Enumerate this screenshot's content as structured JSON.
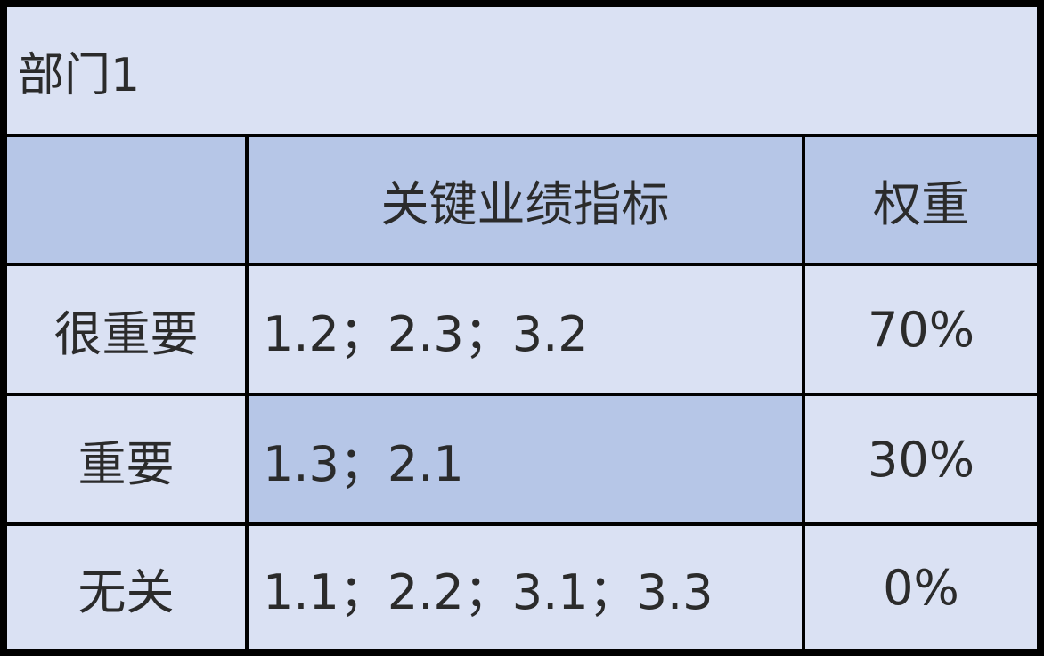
{
  "title": "部门1",
  "header": {
    "col0": "",
    "col1": "关键业绩指标",
    "col2": "权重"
  },
  "rows": [
    {
      "level": "很重要",
      "indicators": "1.2；2.3；3.2",
      "weight": "70%"
    },
    {
      "level": "重要",
      "indicators": "1.3；2.1",
      "weight": "30%"
    },
    {
      "level": "无关",
      "indicators": "1.1；2.2；3.1；3.3",
      "weight": "0%"
    }
  ],
  "colors": {
    "light_fill": "#dae1f3",
    "header_fill": "#b6c6e7",
    "border": "#000000"
  }
}
